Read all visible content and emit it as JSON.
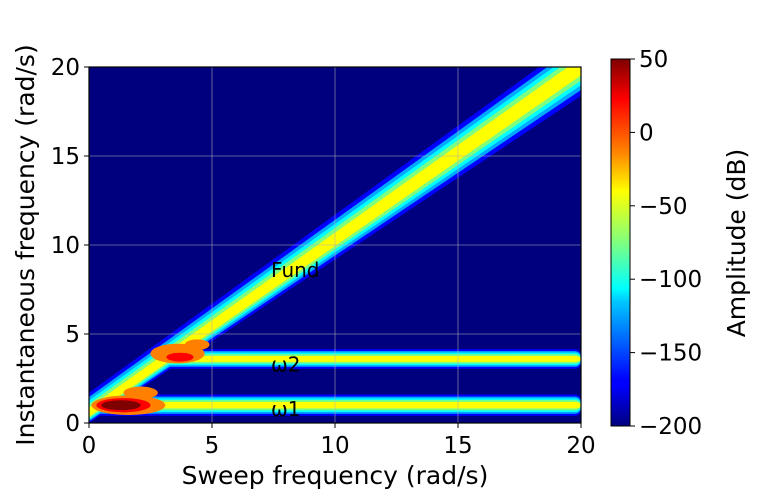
{
  "chart_data": {
    "type": "heatmap",
    "xlabel": "Sweep frequency (rad/s)",
    "ylabel": "Instantaneous frequency (rad/s)",
    "xlim": [
      0,
      20
    ],
    "ylim": [
      0,
      20
    ],
    "xticks": [
      0,
      5,
      10,
      15,
      20
    ],
    "yticks": [
      0,
      5,
      10,
      15,
      20
    ],
    "grid": true,
    "colormap": "jet",
    "colorbar": {
      "label": "Amplitude (dB)",
      "range": [
        -200,
        50
      ],
      "ticks": [
        50,
        0,
        -50,
        -100,
        -150,
        -200
      ]
    },
    "background_value_db": -200,
    "bands": [
      {
        "label": "Fund",
        "annotation_at": [
          7.4,
          8.6
        ],
        "x_start": 0,
        "x_end": 20,
        "y_start": 0.5,
        "y_end": 19.6,
        "peak_db": 40
      },
      {
        "label": "ω2",
        "annotation_at": [
          7.4,
          3.3
        ],
        "x_start": 2.5,
        "x_end": 20,
        "y_value": 3.6,
        "peak_db": 35
      },
      {
        "label": "ω1",
        "annotation_at": [
          7.4,
          0.8
        ],
        "x_start": 0.2,
        "x_end": 20,
        "y_value": 1.0,
        "peak_db": 50
      }
    ]
  }
}
